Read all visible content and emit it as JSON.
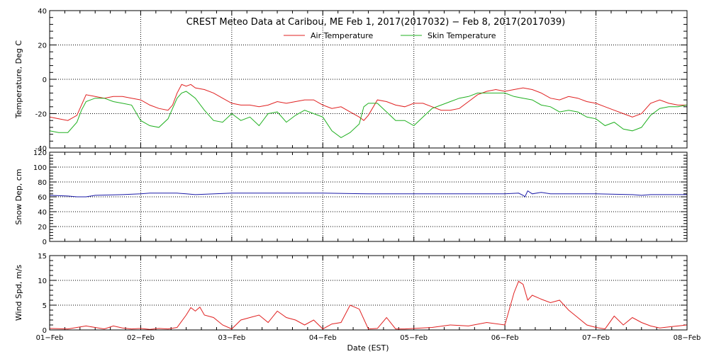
{
  "figure": {
    "title": "CREST Meteo Data at Caribou, ME   Feb  1, 2017(2017032) − Feb  8, 2017(2017039)",
    "xlabel": "Date (EST)",
    "x_ticks": [
      "01−Feb",
      "02−Feb",
      "03−Feb",
      "04−Feb",
      "05−Feb",
      "06−Feb",
      "07−Feb",
      "08−Feb"
    ]
  },
  "chart_data": [
    {
      "type": "line",
      "ylabel": "Temperature, Deg C",
      "ylim": [
        -40,
        40
      ],
      "yticks": [
        -40,
        -20,
        0,
        20,
        40
      ],
      "xlim": [
        0,
        7
      ],
      "grid": true,
      "legend": "top-center",
      "series": [
        {
          "name": "Air Temperature",
          "color": "#e02020",
          "x": [
            0,
            0.1,
            0.2,
            0.3,
            0.35,
            0.4,
            0.5,
            0.6,
            0.7,
            0.8,
            0.9,
            1.0,
            1.1,
            1.2,
            1.3,
            1.35,
            1.4,
            1.45,
            1.5,
            1.55,
            1.6,
            1.7,
            1.8,
            1.9,
            2.0,
            2.1,
            2.2,
            2.3,
            2.4,
            2.5,
            2.6,
            2.7,
            2.8,
            2.9,
            3.0,
            3.1,
            3.2,
            3.3,
            3.4,
            3.45,
            3.5,
            3.6,
            3.7,
            3.8,
            3.9,
            4.0,
            4.1,
            4.2,
            4.3,
            4.4,
            4.5,
            4.6,
            4.7,
            4.8,
            4.9,
            5.0,
            5.1,
            5.2,
            5.3,
            5.4,
            5.5,
            5.6,
            5.7,
            5.8,
            5.9,
            6.0,
            6.1,
            6.2,
            6.3,
            6.4,
            6.5,
            6.6,
            6.7,
            6.8,
            6.9,
            7.0
          ],
          "y": [
            -22,
            -23,
            -24,
            -21,
            -15,
            -9,
            -10,
            -11,
            -10,
            -10,
            -11,
            -12,
            -15,
            -17,
            -18,
            -15,
            -8,
            -3,
            -4,
            -3,
            -5,
            -6,
            -8,
            -11,
            -14,
            -15,
            -15,
            -16,
            -15,
            -13,
            -14,
            -13,
            -12,
            -12,
            -15,
            -17,
            -16,
            -19,
            -22,
            -24,
            -21,
            -12,
            -13,
            -15,
            -16,
            -14,
            -14,
            -16,
            -18,
            -18,
            -17,
            -13,
            -9,
            -7,
            -6,
            -7,
            -6,
            -5,
            -6,
            -8,
            -11,
            -12,
            -10,
            -11,
            -13,
            -14,
            -16,
            -18,
            -20,
            -22,
            -20,
            -14,
            -12,
            -14,
            -15,
            -15
          ]
        },
        {
          "name": "Skin Temperature",
          "color": "#20b020",
          "x": [
            0,
            0.1,
            0.2,
            0.3,
            0.35,
            0.4,
            0.5,
            0.6,
            0.7,
            0.8,
            0.9,
            1.0,
            1.1,
            1.2,
            1.3,
            1.35,
            1.4,
            1.45,
            1.5,
            1.55,
            1.6,
            1.7,
            1.8,
            1.9,
            2.0,
            2.1,
            2.2,
            2.3,
            2.4,
            2.5,
            2.6,
            2.7,
            2.8,
            2.9,
            3.0,
            3.1,
            3.2,
            3.3,
            3.4,
            3.45,
            3.5,
            3.6,
            3.7,
            3.8,
            3.9,
            4.0,
            4.1,
            4.2,
            4.3,
            4.4,
            4.5,
            4.6,
            4.7,
            4.8,
            4.9,
            5.0,
            5.1,
            5.2,
            5.3,
            5.4,
            5.5,
            5.6,
            5.7,
            5.8,
            5.9,
            6.0,
            6.1,
            6.2,
            6.3,
            6.4,
            6.5,
            6.6,
            6.7,
            6.8,
            6.9,
            7.0
          ],
          "y": [
            -30,
            -31,
            -31,
            -25,
            -18,
            -13,
            -11,
            -11,
            -13,
            -14,
            -15,
            -24,
            -27,
            -28,
            -23,
            -17,
            -11,
            -8,
            -7,
            -9,
            -11,
            -18,
            -24,
            -25,
            -20,
            -24,
            -22,
            -27,
            -20,
            -19,
            -25,
            -21,
            -18,
            -20,
            -22,
            -30,
            -34,
            -31,
            -26,
            -16,
            -14,
            -14,
            -19,
            -24,
            -24,
            -27,
            -22,
            -17,
            -15,
            -13,
            -11,
            -10,
            -8,
            -8,
            -8,
            -8,
            -10,
            -11,
            -12,
            -15,
            -16,
            -19,
            -18,
            -19,
            -22,
            -23,
            -27,
            -25,
            -29,
            -30,
            -28,
            -21,
            -17,
            -16,
            -16,
            -15
          ]
        }
      ]
    },
    {
      "type": "line",
      "ylabel": "Snow Dep, cm",
      "ylim": [
        0,
        120
      ],
      "yticks": [
        0,
        20,
        40,
        60,
        80,
        100,
        120
      ],
      "xlim": [
        0,
        7
      ],
      "grid": true,
      "series": [
        {
          "color": "#1a1aa8",
          "x": [
            0,
            0.2,
            0.3,
            0.4,
            0.5,
            0.8,
            1.0,
            1.1,
            1.2,
            1.4,
            1.5,
            1.6,
            2.0,
            2.5,
            3.0,
            3.5,
            4.0,
            4.5,
            5.0,
            5.15,
            5.2,
            5.22,
            5.25,
            5.3,
            5.4,
            5.5,
            6.0,
            6.4,
            6.5,
            6.6,
            7.0
          ],
          "y": [
            62,
            61,
            60,
            60,
            62,
            63,
            64,
            65,
            65,
            65,
            64,
            63,
            65,
            65,
            65,
            64,
            64,
            64,
            64,
            65,
            62,
            60,
            68,
            64,
            66,
            64,
            64,
            63,
            62,
            63,
            63
          ]
        }
      ]
    },
    {
      "type": "line",
      "ylabel": "Wind Spd, m/s",
      "ylim": [
        0,
        15
      ],
      "yticks": [
        0,
        5,
        10,
        15
      ],
      "xlim": [
        0,
        7
      ],
      "grid": true,
      "series": [
        {
          "color": "#e02020",
          "x": [
            0,
            0.2,
            0.4,
            0.5,
            0.6,
            0.7,
            0.8,
            0.9,
            1.0,
            1.1,
            1.2,
            1.3,
            1.4,
            1.5,
            1.55,
            1.6,
            1.65,
            1.7,
            1.8,
            1.9,
            2.0,
            2.1,
            2.2,
            2.3,
            2.4,
            2.5,
            2.6,
            2.7,
            2.8,
            2.9,
            3.0,
            3.1,
            3.2,
            3.3,
            3.4,
            3.5,
            3.6,
            3.7,
            3.8,
            3.9,
            4.0,
            4.2,
            4.4,
            4.6,
            4.8,
            5.0,
            5.1,
            5.15,
            5.2,
            5.25,
            5.3,
            5.4,
            5.5,
            5.6,
            5.7,
            5.8,
            5.9,
            6.0,
            6.1,
            6.2,
            6.3,
            6.4,
            6.5,
            6.6,
            6.7,
            6.8,
            6.9,
            7.0
          ],
          "y": [
            0.3,
            0.2,
            0.8,
            0.5,
            0.2,
            0.8,
            0.4,
            0.2,
            0.3,
            0.1,
            0.3,
            0.2,
            0.5,
            3.0,
            4.5,
            3.8,
            4.6,
            3.0,
            2.5,
            1.0,
            0.2,
            2.0,
            2.5,
            3.0,
            1.5,
            3.8,
            2.5,
            2.0,
            1.0,
            2.0,
            0.2,
            1.2,
            1.5,
            5.0,
            4.2,
            0.2,
            0.3,
            2.5,
            0.2,
            0.2,
            0.3,
            0.5,
            1.0,
            0.8,
            1.5,
            1.0,
            7.5,
            9.8,
            9.2,
            6.0,
            7.0,
            6.2,
            5.5,
            6.0,
            4.0,
            2.5,
            1.0,
            0.5,
            0.2,
            2.8,
            1.0,
            2.5,
            1.5,
            0.8,
            0.4,
            0.6,
            0.8,
            1.0
          ]
        }
      ]
    }
  ]
}
